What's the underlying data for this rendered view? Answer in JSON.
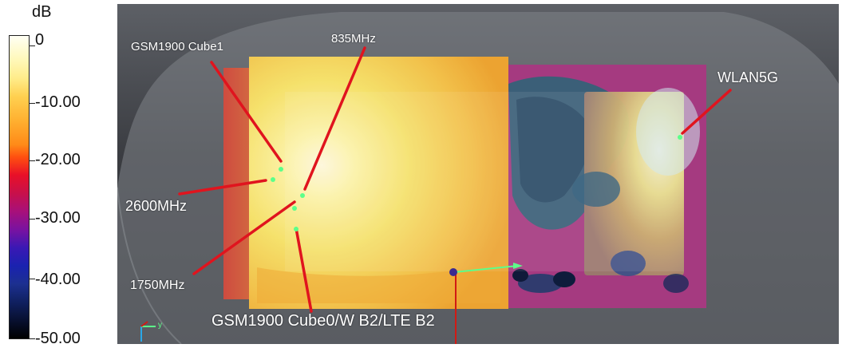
{
  "legend": {
    "title": "dB",
    "ticks": [
      "0",
      "-10.00",
      "-20.00",
      "-30.00",
      "-40.00",
      "-50.00"
    ]
  },
  "callouts": {
    "gsm1900_cube1": "GSM1900 Cube1",
    "mhz835": "835MHz",
    "wlan5g": "WLAN5G",
    "mhz2600": "2600MHz",
    "mhz1750": "1750MHz",
    "gsm1900_cube0": "GSM1900 Cube0/W B2/LTE B2"
  },
  "axis_triad": {
    "y_label": "y"
  },
  "colors": {
    "leader_line": "#e0141e",
    "hotspot_dot": "#5cff8a",
    "background": "#3a3c41"
  }
}
